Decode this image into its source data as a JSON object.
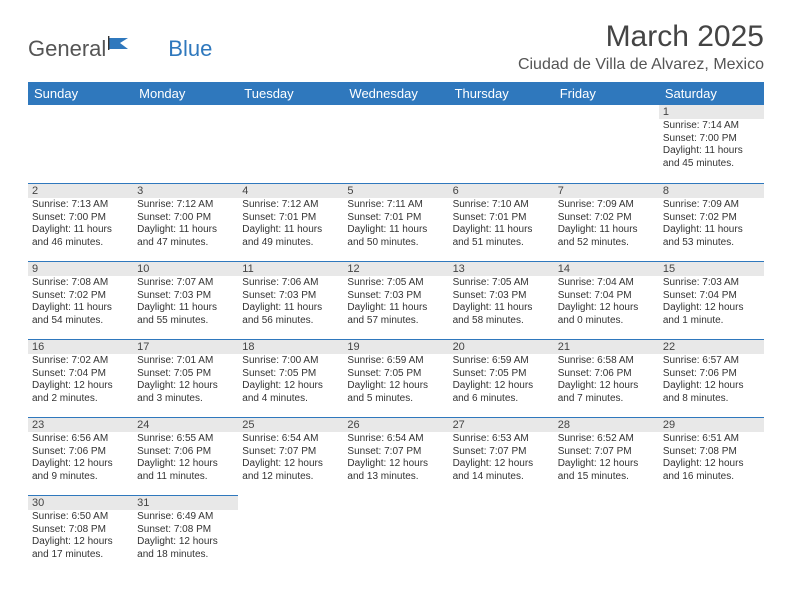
{
  "logo": {
    "general": "General",
    "blue": "Blue"
  },
  "title": "March 2025",
  "location": "Ciudad de Villa de Alvarez, Mexico",
  "colors": {
    "header_bg": "#2f78bd",
    "header_text": "#ffffff",
    "daynum_bg": "#e8e8e8",
    "border": "#2f78bd"
  },
  "weekdays": [
    "Sunday",
    "Monday",
    "Tuesday",
    "Wednesday",
    "Thursday",
    "Friday",
    "Saturday"
  ],
  "weeks": [
    [
      null,
      null,
      null,
      null,
      null,
      null,
      {
        "n": "1",
        "sr": "Sunrise: 7:14 AM",
        "ss": "Sunset: 7:00 PM",
        "dl": "Daylight: 11 hours and 45 minutes."
      }
    ],
    [
      {
        "n": "2",
        "sr": "Sunrise: 7:13 AM",
        "ss": "Sunset: 7:00 PM",
        "dl": "Daylight: 11 hours and 46 minutes."
      },
      {
        "n": "3",
        "sr": "Sunrise: 7:12 AM",
        "ss": "Sunset: 7:00 PM",
        "dl": "Daylight: 11 hours and 47 minutes."
      },
      {
        "n": "4",
        "sr": "Sunrise: 7:12 AM",
        "ss": "Sunset: 7:01 PM",
        "dl": "Daylight: 11 hours and 49 minutes."
      },
      {
        "n": "5",
        "sr": "Sunrise: 7:11 AM",
        "ss": "Sunset: 7:01 PM",
        "dl": "Daylight: 11 hours and 50 minutes."
      },
      {
        "n": "6",
        "sr": "Sunrise: 7:10 AM",
        "ss": "Sunset: 7:01 PM",
        "dl": "Daylight: 11 hours and 51 minutes."
      },
      {
        "n": "7",
        "sr": "Sunrise: 7:09 AM",
        "ss": "Sunset: 7:02 PM",
        "dl": "Daylight: 11 hours and 52 minutes."
      },
      {
        "n": "8",
        "sr": "Sunrise: 7:09 AM",
        "ss": "Sunset: 7:02 PM",
        "dl": "Daylight: 11 hours and 53 minutes."
      }
    ],
    [
      {
        "n": "9",
        "sr": "Sunrise: 7:08 AM",
        "ss": "Sunset: 7:02 PM",
        "dl": "Daylight: 11 hours and 54 minutes."
      },
      {
        "n": "10",
        "sr": "Sunrise: 7:07 AM",
        "ss": "Sunset: 7:03 PM",
        "dl": "Daylight: 11 hours and 55 minutes."
      },
      {
        "n": "11",
        "sr": "Sunrise: 7:06 AM",
        "ss": "Sunset: 7:03 PM",
        "dl": "Daylight: 11 hours and 56 minutes."
      },
      {
        "n": "12",
        "sr": "Sunrise: 7:05 AM",
        "ss": "Sunset: 7:03 PM",
        "dl": "Daylight: 11 hours and 57 minutes."
      },
      {
        "n": "13",
        "sr": "Sunrise: 7:05 AM",
        "ss": "Sunset: 7:03 PM",
        "dl": "Daylight: 11 hours and 58 minutes."
      },
      {
        "n": "14",
        "sr": "Sunrise: 7:04 AM",
        "ss": "Sunset: 7:04 PM",
        "dl": "Daylight: 12 hours and 0 minutes."
      },
      {
        "n": "15",
        "sr": "Sunrise: 7:03 AM",
        "ss": "Sunset: 7:04 PM",
        "dl": "Daylight: 12 hours and 1 minute."
      }
    ],
    [
      {
        "n": "16",
        "sr": "Sunrise: 7:02 AM",
        "ss": "Sunset: 7:04 PM",
        "dl": "Daylight: 12 hours and 2 minutes."
      },
      {
        "n": "17",
        "sr": "Sunrise: 7:01 AM",
        "ss": "Sunset: 7:05 PM",
        "dl": "Daylight: 12 hours and 3 minutes."
      },
      {
        "n": "18",
        "sr": "Sunrise: 7:00 AM",
        "ss": "Sunset: 7:05 PM",
        "dl": "Daylight: 12 hours and 4 minutes."
      },
      {
        "n": "19",
        "sr": "Sunrise: 6:59 AM",
        "ss": "Sunset: 7:05 PM",
        "dl": "Daylight: 12 hours and 5 minutes."
      },
      {
        "n": "20",
        "sr": "Sunrise: 6:59 AM",
        "ss": "Sunset: 7:05 PM",
        "dl": "Daylight: 12 hours and 6 minutes."
      },
      {
        "n": "21",
        "sr": "Sunrise: 6:58 AM",
        "ss": "Sunset: 7:06 PM",
        "dl": "Daylight: 12 hours and 7 minutes."
      },
      {
        "n": "22",
        "sr": "Sunrise: 6:57 AM",
        "ss": "Sunset: 7:06 PM",
        "dl": "Daylight: 12 hours and 8 minutes."
      }
    ],
    [
      {
        "n": "23",
        "sr": "Sunrise: 6:56 AM",
        "ss": "Sunset: 7:06 PM",
        "dl": "Daylight: 12 hours and 9 minutes."
      },
      {
        "n": "24",
        "sr": "Sunrise: 6:55 AM",
        "ss": "Sunset: 7:06 PM",
        "dl": "Daylight: 12 hours and 11 minutes."
      },
      {
        "n": "25",
        "sr": "Sunrise: 6:54 AM",
        "ss": "Sunset: 7:07 PM",
        "dl": "Daylight: 12 hours and 12 minutes."
      },
      {
        "n": "26",
        "sr": "Sunrise: 6:54 AM",
        "ss": "Sunset: 7:07 PM",
        "dl": "Daylight: 12 hours and 13 minutes."
      },
      {
        "n": "27",
        "sr": "Sunrise: 6:53 AM",
        "ss": "Sunset: 7:07 PM",
        "dl": "Daylight: 12 hours and 14 minutes."
      },
      {
        "n": "28",
        "sr": "Sunrise: 6:52 AM",
        "ss": "Sunset: 7:07 PM",
        "dl": "Daylight: 12 hours and 15 minutes."
      },
      {
        "n": "29",
        "sr": "Sunrise: 6:51 AM",
        "ss": "Sunset: 7:08 PM",
        "dl": "Daylight: 12 hours and 16 minutes."
      }
    ],
    [
      {
        "n": "30",
        "sr": "Sunrise: 6:50 AM",
        "ss": "Sunset: 7:08 PM",
        "dl": "Daylight: 12 hours and 17 minutes."
      },
      {
        "n": "31",
        "sr": "Sunrise: 6:49 AM",
        "ss": "Sunset: 7:08 PM",
        "dl": "Daylight: 12 hours and 18 minutes."
      },
      null,
      null,
      null,
      null,
      null
    ]
  ]
}
